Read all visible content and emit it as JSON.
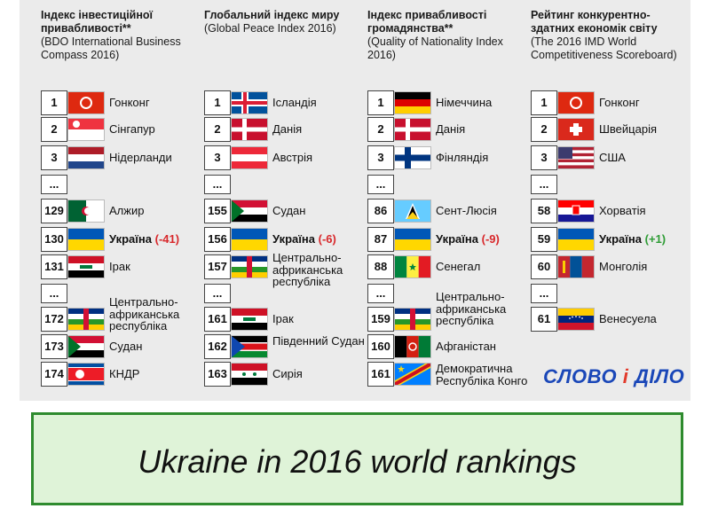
{
  "columns": [
    {
      "title": "Індекс інвестиційної привабливості**",
      "subtitle": "(BDO International Business Compass 2016)",
      "rows": [
        {
          "rank": "1",
          "flag": "hong-kong",
          "country": "Гонконг"
        },
        {
          "rank": "2",
          "flag": "singapore",
          "country": "Сінгапур"
        },
        {
          "rank": "3",
          "flag": "netherlands",
          "country": "Нідерланди"
        },
        {
          "rank": "...",
          "flag": "",
          "country": ""
        },
        {
          "rank": "129",
          "flag": "algeria",
          "country": "Алжир"
        },
        {
          "rank": "130",
          "flag": "ukraine",
          "country": "Україна",
          "delta": "(-41)",
          "trend": "neg"
        },
        {
          "rank": "131",
          "flag": "iraq",
          "country": "Ірак"
        },
        {
          "rank": "...",
          "flag": "",
          "country": ""
        },
        {
          "rank": "172",
          "flag": "car",
          "country": "Центрально-африканська республіка"
        },
        {
          "rank": "173",
          "flag": "sudan",
          "country": "Судан"
        },
        {
          "rank": "174",
          "flag": "north-korea",
          "country": "КНДР"
        }
      ]
    },
    {
      "title": "Глобальний індекс миру",
      "subtitle": "(Global Peace Index 2016)",
      "rows": [
        {
          "rank": "1",
          "flag": "iceland",
          "country": "Ісландія"
        },
        {
          "rank": "2",
          "flag": "denmark",
          "country": "Данія"
        },
        {
          "rank": "3",
          "flag": "austria",
          "country": "Австрія"
        },
        {
          "rank": "...",
          "flag": "",
          "country": ""
        },
        {
          "rank": "155",
          "flag": "sudan",
          "country": "Судан"
        },
        {
          "rank": "156",
          "flag": "ukraine",
          "country": "Україна",
          "delta": "(-6)",
          "trend": "neg"
        },
        {
          "rank": "157",
          "flag": "car",
          "country": "Центрально-африканська республіка"
        },
        {
          "rank": "...",
          "flag": "",
          "country": ""
        },
        {
          "rank": "161",
          "flag": "iraq",
          "country": "Ірак"
        },
        {
          "rank": "162",
          "flag": "south-sudan",
          "country": "Південний Судан"
        },
        {
          "rank": "163",
          "flag": "syria",
          "country": "Сирія"
        }
      ]
    },
    {
      "title": "Індекс привабливості громадянства**",
      "subtitle": "(Quality of Nationality Index 2016)",
      "rows": [
        {
          "rank": "1",
          "flag": "germany",
          "country": "Німеччина"
        },
        {
          "rank": "2",
          "flag": "denmark",
          "country": "Данія"
        },
        {
          "rank": "3",
          "flag": "finland",
          "country": "Фінляндія"
        },
        {
          "rank": "...",
          "flag": "",
          "country": ""
        },
        {
          "rank": "86",
          "flag": "saint-lucia",
          "country": "Сент-Люсія"
        },
        {
          "rank": "87",
          "flag": "ukraine",
          "country": "Україна",
          "delta": "(-9)",
          "trend": "neg"
        },
        {
          "rank": "88",
          "flag": "senegal",
          "country": "Сенегал"
        },
        {
          "rank": "...",
          "flag": "",
          "country": ""
        },
        {
          "rank": "159",
          "flag": "car",
          "country": "Центрально-африканська республіка"
        },
        {
          "rank": "160",
          "flag": "afghanistan",
          "country": "Афганістан"
        },
        {
          "rank": "161",
          "flag": "dr-congo",
          "country": "Демократична Республіка Конго"
        }
      ]
    },
    {
      "title": "Рейтинг конкурентно-здатних економік світу",
      "subtitle": "(The 2016 IMD World Competitiveness Scoreboard)",
      "rows": [
        {
          "rank": "1",
          "flag": "hong-kong",
          "country": "Гонконг"
        },
        {
          "rank": "2",
          "flag": "switzerland",
          "country": "Швейцарія"
        },
        {
          "rank": "3",
          "flag": "usa",
          "country": "США"
        },
        {
          "rank": "...",
          "flag": "",
          "country": ""
        },
        {
          "rank": "58",
          "flag": "croatia",
          "country": "Хорватія"
        },
        {
          "rank": "59",
          "flag": "ukraine",
          "country": "Україна",
          "delta": "(+1)",
          "trend": "pos"
        },
        {
          "rank": "60",
          "flag": "mongolia",
          "country": "Монголія"
        },
        {
          "rank": "...",
          "flag": "",
          "country": ""
        },
        {
          "rank": "61",
          "flag": "venezuela",
          "country": "Венесуела"
        }
      ]
    }
  ],
  "logo": {
    "part1": "СЛОВО",
    "part2": "і",
    "part3": "ДІЛО"
  },
  "caption": "Ukraine in 2016 world rankings",
  "colors": {
    "accent_negative": "#d8282b",
    "accent_positive": "#2e9c35",
    "caption_border": "#2e8b2e",
    "caption_bg": "#dff3d8"
  }
}
